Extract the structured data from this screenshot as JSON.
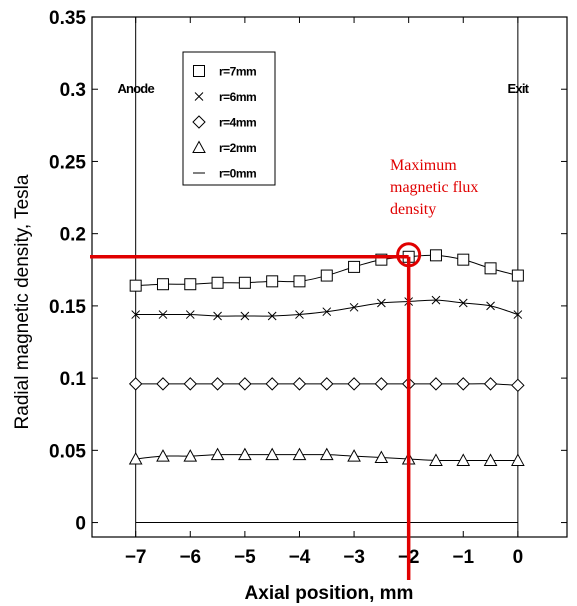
{
  "chart_data": {
    "type": "line",
    "title": "",
    "xlabel": "Axial position, mm",
    "ylabel": "Radial magnetic density, Tesla",
    "xlim": [
      -7.8,
      0.9
    ],
    "ylim": [
      -0.01,
      0.35
    ],
    "xticks": [
      -7,
      -6,
      -5,
      -4,
      -3,
      -2,
      -1,
      0
    ],
    "xtick_labels": [
      "−7",
      "−6",
      "−5",
      "−4",
      "−3",
      "−2",
      "−1",
      "0"
    ],
    "yticks": [
      0,
      0.05,
      0.1,
      0.15,
      0.2,
      0.25,
      0.3,
      0.35
    ],
    "ytick_labels": [
      "0",
      "0.05",
      "0.1",
      "0.15",
      "0.2",
      "0.25",
      "0.3",
      "0.35"
    ],
    "grid": false,
    "legend_position": "top-left",
    "x": [
      -7,
      -6.5,
      -6,
      -5.5,
      -5,
      -4.5,
      -4,
      -3.5,
      -3,
      -2.5,
      -2,
      -1.5,
      -1,
      -0.5,
      0
    ],
    "series": [
      {
        "name": "r=7mm",
        "marker": "square",
        "values": [
          0.164,
          0.165,
          0.165,
          0.166,
          0.166,
          0.167,
          0.167,
          0.171,
          0.177,
          0.182,
          0.184,
          0.185,
          0.182,
          0.176,
          0.171
        ]
      },
      {
        "name": "r=6mm",
        "marker": "x",
        "values": [
          0.144,
          0.144,
          0.144,
          0.143,
          0.143,
          0.143,
          0.144,
          0.146,
          0.149,
          0.152,
          0.153,
          0.154,
          0.152,
          0.15,
          0.144
        ]
      },
      {
        "name": "r=4mm",
        "marker": "diamond",
        "values": [
          0.096,
          0.096,
          0.096,
          0.096,
          0.096,
          0.096,
          0.096,
          0.096,
          0.096,
          0.096,
          0.096,
          0.096,
          0.096,
          0.096,
          0.095
        ]
      },
      {
        "name": "r=2mm",
        "marker": "triangle",
        "values": [
          0.044,
          0.046,
          0.046,
          0.047,
          0.047,
          0.047,
          0.047,
          0.047,
          0.046,
          0.045,
          0.044,
          0.043,
          0.043,
          0.043,
          0.043
        ]
      },
      {
        "name": "r=0mm",
        "marker": "line",
        "values": [
          0,
          0,
          0,
          0,
          0,
          0,
          0,
          0,
          0,
          0,
          0,
          0,
          0,
          0,
          0
        ]
      }
    ],
    "reference_lines": [
      {
        "axis": "x",
        "value": -7,
        "label": "Anode"
      },
      {
        "axis": "x",
        "value": 0,
        "label": "Exit"
      }
    ],
    "highlight": {
      "x": -2,
      "y": 0.184,
      "color": "#e00000",
      "annotation": [
        "Maximum",
        "magnetic flux",
        "density"
      ]
    }
  }
}
